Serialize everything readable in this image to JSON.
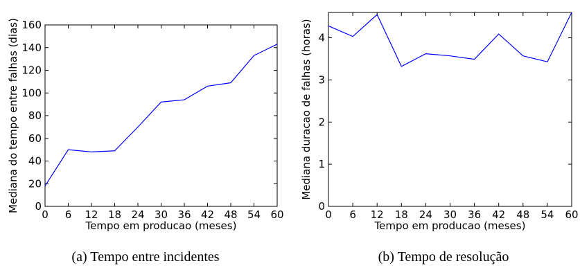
{
  "chart_data": [
    {
      "type": "line",
      "caption": "(a) Tempo entre incidentes",
      "xlabel": "Tempo em producao (meses)",
      "ylabel": "Mediana do tempo entre falhas (dias)",
      "xlim": [
        0,
        60
      ],
      "ylim": [
        0,
        160
      ],
      "xticks": [
        0,
        6,
        12,
        18,
        24,
        30,
        36,
        42,
        48,
        54,
        60
      ],
      "yticks": [
        0,
        20,
        40,
        60,
        80,
        100,
        120,
        140,
        160
      ],
      "line_color": "#0000ff",
      "grid": false,
      "x": [
        0,
        6,
        12,
        18,
        24,
        30,
        36,
        42,
        48,
        54,
        60
      ],
      "values": [
        18,
        50,
        48,
        49,
        70,
        92,
        94,
        106,
        109,
        133,
        143
      ]
    },
    {
      "type": "line",
      "caption": "(b) Tempo de resolução",
      "xlabel": "Tempo em producao (meses)",
      "ylabel": "Mediana duracao de falhas (horas)",
      "xlim": [
        0,
        60
      ],
      "ylim": [
        0,
        4.6
      ],
      "xticks": [
        0,
        6,
        12,
        18,
        24,
        30,
        36,
        42,
        48,
        54,
        60
      ],
      "yticks": [
        0,
        1,
        2,
        3,
        4
      ],
      "line_color": "#0000ff",
      "grid": false,
      "x": [
        0,
        6,
        12,
        18,
        24,
        30,
        36,
        42,
        48,
        54,
        60
      ],
      "values": [
        4.28,
        4.03,
        4.55,
        3.32,
        3.62,
        3.57,
        3.49,
        4.09,
        3.57,
        3.43,
        4.6
      ]
    }
  ]
}
